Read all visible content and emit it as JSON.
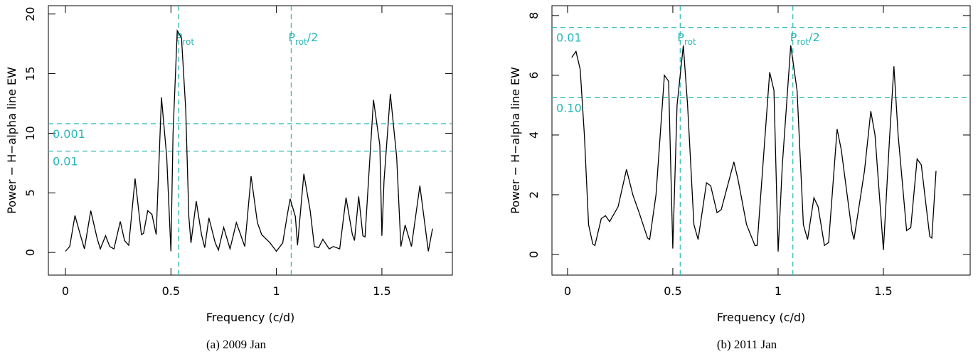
{
  "chart_data": [
    {
      "type": "line",
      "caption": "(a) 2009 Jan",
      "xlabel": "Frequency (c/d)",
      "ylabel": "Power − H−alpha line EW",
      "color": "#000000",
      "ref_color": "#2ab7b7",
      "xlim": [
        -0.081,
        1.834
      ],
      "ylim": [
        -1.9,
        20.7
      ],
      "xticks": [
        0,
        0.5,
        1,
        1.5
      ],
      "yticks": [
        0,
        5,
        10,
        15,
        20
      ],
      "x": [
        0.0,
        0.02,
        0.045,
        0.07,
        0.09,
        0.12,
        0.15,
        0.165,
        0.19,
        0.21,
        0.23,
        0.26,
        0.28,
        0.3,
        0.33,
        0.36,
        0.37,
        0.39,
        0.41,
        0.43,
        0.455,
        0.48,
        0.5,
        0.51,
        0.53,
        0.55,
        0.57,
        0.585,
        0.595,
        0.62,
        0.645,
        0.66,
        0.68,
        0.71,
        0.725,
        0.75,
        0.78,
        0.81,
        0.83,
        0.85,
        0.88,
        0.91,
        0.93,
        0.97,
        1.0,
        1.03,
        1.05,
        1.065,
        1.09,
        1.1,
        1.13,
        1.16,
        1.18,
        1.2,
        1.22,
        1.25,
        1.27,
        1.3,
        1.33,
        1.36,
        1.37,
        1.39,
        1.41,
        1.42,
        1.46,
        1.49,
        1.5,
        1.51,
        1.54,
        1.57,
        1.59,
        1.61,
        1.64,
        1.68,
        1.71,
        1.72,
        1.74
      ],
      "values": [
        0.1,
        0.5,
        3.1,
        1.5,
        0.3,
        3.5,
        1.2,
        0.3,
        1.4,
        0.5,
        0.3,
        2.6,
        1.0,
        0.6,
        6.2,
        1.5,
        1.6,
        3.5,
        3.2,
        1.5,
        13.0,
        8,
        0.1,
        10,
        18.6,
        18.0,
        12,
        3,
        0.8,
        4.3,
        1.5,
        0.4,
        2.9,
        0.8,
        0.2,
        2.1,
        0.3,
        2.5,
        1.5,
        0.5,
        6.4,
        2.5,
        1.5,
        0.8,
        0.1,
        0.8,
        3.0,
        4.5,
        3.0,
        0.6,
        6.6,
        3.5,
        0.5,
        0.4,
        1.1,
        0.3,
        0.5,
        0.3,
        4.6,
        1.5,
        1.0,
        4.7,
        1.4,
        1.3,
        12.8,
        9,
        1.4,
        6,
        13.3,
        8,
        0.5,
        2.3,
        0.5,
        5.6,
        1.5,
        0.1,
        2.0
      ],
      "hlines": [
        {
          "y": 10.8,
          "label": "0.001"
        },
        {
          "y": 8.5,
          "label": "0.01"
        }
      ],
      "vlines": [
        {
          "x": 0.535,
          "label": "P",
          "sub": "rot"
        },
        {
          "x": 1.07,
          "label": "P",
          "sub": "rot",
          "suffix": "/2"
        }
      ]
    },
    {
      "type": "line",
      "caption": "(b) 2011 Jan",
      "xlabel": "Frequency (c/d)",
      "ylabel": "Power − H−alpha line EW",
      "color": "#000000",
      "ref_color": "#2ab7b7",
      "xlim": [
        -0.074,
        1.912
      ],
      "ylim": [
        -0.69,
        8.33
      ],
      "xticks": [
        0,
        0.5,
        1,
        1.5
      ],
      "yticks": [
        0,
        2,
        4,
        6,
        8
      ],
      "x": [
        0.02,
        0.04,
        0.06,
        0.08,
        0.1,
        0.12,
        0.13,
        0.16,
        0.18,
        0.2,
        0.24,
        0.28,
        0.31,
        0.34,
        0.38,
        0.39,
        0.42,
        0.46,
        0.48,
        0.5,
        0.52,
        0.55,
        0.57,
        0.6,
        0.62,
        0.66,
        0.68,
        0.71,
        0.73,
        0.79,
        0.81,
        0.85,
        0.89,
        0.9,
        0.96,
        0.98,
        1.0,
        1.02,
        1.06,
        1.09,
        1.12,
        1.14,
        1.17,
        1.19,
        1.22,
        1.24,
        1.28,
        1.3,
        1.35,
        1.36,
        1.41,
        1.44,
        1.46,
        1.5,
        1.53,
        1.55,
        1.57,
        1.61,
        1.63,
        1.66,
        1.68,
        1.7,
        1.72,
        1.73,
        1.75
      ],
      "values": [
        6.6,
        6.8,
        6.2,
        4,
        1,
        0.35,
        0.3,
        1.2,
        1.3,
        1.1,
        1.6,
        2.85,
        2.0,
        1.4,
        0.55,
        0.5,
        2.0,
        6.0,
        5.8,
        0.2,
        5.0,
        7.0,
        5,
        1.0,
        0.5,
        2.4,
        2.3,
        1.4,
        1.5,
        3.1,
        2.5,
        1.0,
        0.3,
        0.3,
        6.1,
        5.5,
        0.1,
        3,
        7.0,
        5.5,
        1.0,
        0.5,
        1.9,
        1.6,
        0.3,
        0.4,
        4.2,
        3.5,
        0.8,
        0.5,
        2.8,
        4.8,
        4,
        0.15,
        4,
        6.3,
        4,
        0.8,
        0.9,
        3.2,
        3.0,
        1.8,
        0.6,
        0.55,
        2.8
      ],
      "hlines": [
        {
          "y": 7.6,
          "label": "0.01"
        },
        {
          "y": 5.25,
          "label": "0.10"
        }
      ],
      "vlines": [
        {
          "x": 0.535,
          "label": "P",
          "sub": "rot"
        },
        {
          "x": 1.07,
          "label": "P",
          "sub": "rot",
          "suffix": "/2"
        }
      ]
    }
  ]
}
